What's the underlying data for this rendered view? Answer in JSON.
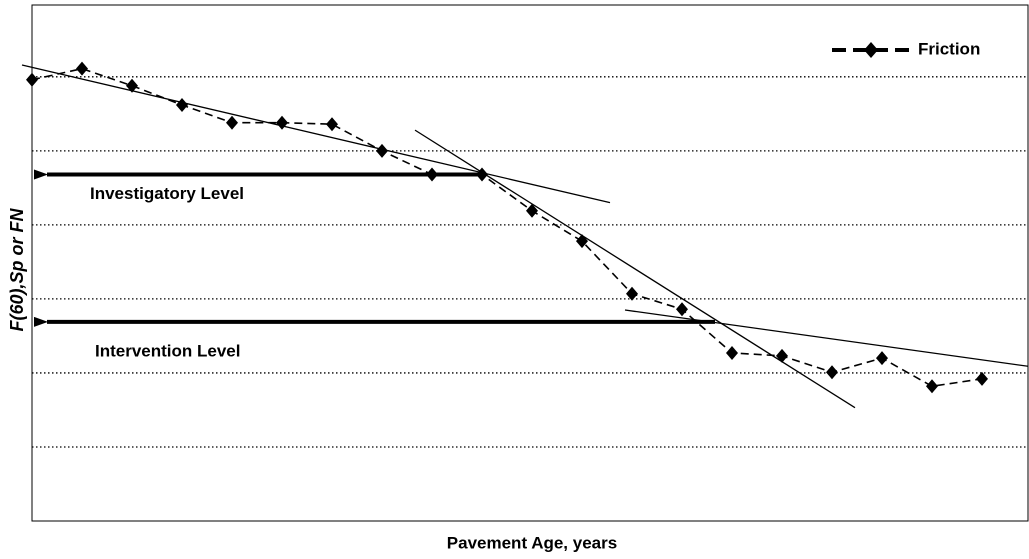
{
  "chart_data": {
    "type": "line",
    "x_label": "Pavement Age, years",
    "y_label": "F(60),Sp  or  FN",
    "x": [
      0,
      1,
      2,
      3,
      4,
      5,
      6,
      7,
      8,
      9,
      10,
      11,
      12,
      13,
      14,
      15,
      16,
      17,
      18,
      19
    ],
    "series": [
      {
        "name": "Friction",
        "color": "#000000",
        "values": [
          5.96,
          6.11,
          5.88,
          5.62,
          5.38,
          5.38,
          5.36,
          5.0,
          4.68,
          4.68,
          4.19,
          3.78,
          3.07,
          2.86,
          2.27,
          2.23,
          2.01,
          2.2,
          1.82,
          1.92
        ]
      }
    ],
    "xlim": [
      0,
      19.92
    ],
    "ylim": [
      0,
      6.97
    ],
    "ygrid": [
      1,
      2,
      3,
      4,
      5,
      6
    ],
    "trend_lines": [
      {
        "x": [
          -0.2,
          11.56
        ],
        "y": [
          6.16,
          4.3
        ]
      },
      {
        "x": [
          7.66,
          16.46
        ],
        "y": [
          5.28,
          1.53
        ]
      },
      {
        "x": [
          11.86,
          19.92
        ],
        "y": [
          2.85,
          2.09
        ]
      }
    ],
    "annotations": [
      {
        "text": "Investigatory Level",
        "x": [
          9,
          0.06
        ],
        "y": 4.68
      },
      {
        "text": "Intervention Level",
        "x": [
          13.66,
          0.06
        ],
        "y": 2.69
      }
    ],
    "legend": "upper right"
  }
}
